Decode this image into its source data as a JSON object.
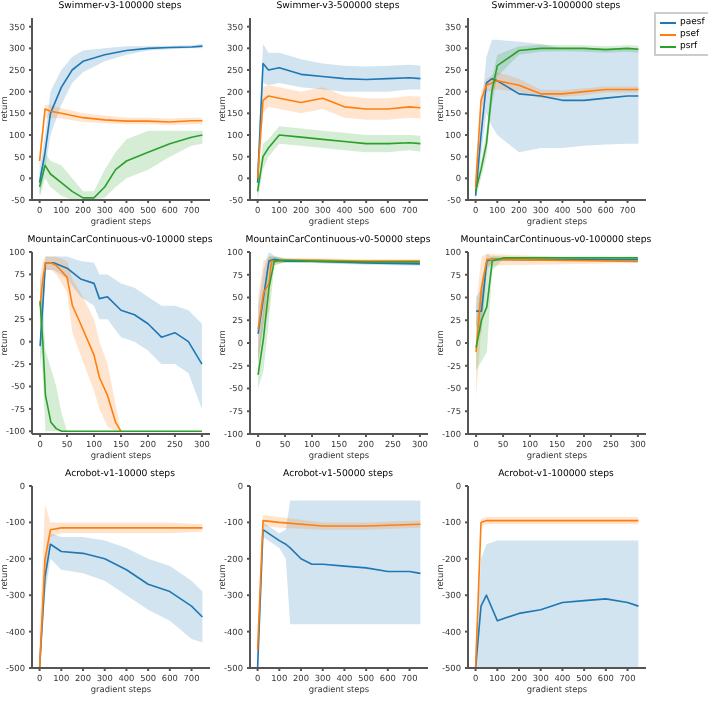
{
  "chart_data": [
    {
      "type": "line",
      "title": "Swimmer-v3-100000 steps",
      "xlabel": "gradient steps",
      "ylabel": "return",
      "xlim": [
        -35,
        785
      ],
      "xticks": [
        0,
        100,
        200,
        300,
        400,
        500,
        600,
        700
      ],
      "ylim": [
        -50,
        370
      ],
      "yticks": [
        -50,
        0,
        50,
        100,
        150,
        200,
        250,
        300,
        350
      ],
      "series": [
        {
          "color": "#1f77b4",
          "x": [
            0,
            25,
            50,
            100,
            150,
            200,
            300,
            400,
            500,
            600,
            700,
            750
          ],
          "values": [
            -10,
            60,
            150,
            210,
            250,
            270,
            285,
            295,
            300,
            302,
            303,
            305
          ],
          "lower": [
            -40,
            20,
            100,
            170,
            220,
            245,
            270,
            285,
            295,
            298,
            300,
            300
          ],
          "upper": [
            20,
            100,
            200,
            250,
            280,
            295,
            300,
            305,
            305,
            306,
            307,
            310
          ]
        },
        {
          "color": "#ff7f0e",
          "x": [
            0,
            25,
            50,
            100,
            200,
            300,
            400,
            500,
            600,
            700,
            750
          ],
          "values": [
            40,
            160,
            155,
            150,
            140,
            135,
            132,
            132,
            130,
            133,
            133
          ],
          "lower": [
            20,
            140,
            140,
            138,
            130,
            127,
            125,
            125,
            123,
            125,
            125
          ],
          "upper": [
            60,
            170,
            170,
            162,
            150,
            145,
            140,
            140,
            138,
            140,
            140
          ]
        },
        {
          "color": "#2ca02c",
          "x": [
            0,
            25,
            50,
            100,
            150,
            200,
            250,
            300,
            350,
            400,
            500,
            600,
            700,
            750
          ],
          "values": [
            -20,
            30,
            10,
            -10,
            -30,
            -45,
            -45,
            -20,
            20,
            40,
            60,
            80,
            95,
            100
          ],
          "lower": [
            -45,
            0,
            -20,
            -40,
            -50,
            -50,
            -50,
            -45,
            -20,
            0,
            20,
            50,
            75,
            80
          ],
          "upper": [
            10,
            60,
            40,
            30,
            0,
            -30,
            -30,
            20,
            60,
            90,
            110,
            110,
            110,
            110
          ]
        }
      ]
    },
    {
      "type": "line",
      "title": "Swimmer-v3-500000 steps",
      "xlabel": "gradient steps",
      "ylabel": "return",
      "xlim": [
        -35,
        785
      ],
      "xticks": [
        0,
        100,
        200,
        300,
        400,
        500,
        600,
        700
      ],
      "ylim": [
        -50,
        370
      ],
      "yticks": [
        -50,
        0,
        50,
        100,
        150,
        200,
        250,
        300,
        350
      ],
      "series": [
        {
          "color": "#1f77b4",
          "x": [
            0,
            25,
            50,
            100,
            200,
            300,
            400,
            500,
            600,
            700,
            750
          ],
          "values": [
            -10,
            265,
            250,
            255,
            240,
            235,
            230,
            228,
            230,
            232,
            230
          ],
          "lower": [
            -50,
            220,
            215,
            220,
            210,
            205,
            200,
            200,
            200,
            205,
            205
          ],
          "upper": [
            30,
            310,
            290,
            290,
            275,
            265,
            260,
            258,
            260,
            262,
            260
          ]
        },
        {
          "color": "#ff7f0e",
          "x": [
            0,
            25,
            50,
            100,
            200,
            300,
            400,
            500,
            600,
            700,
            750
          ],
          "values": [
            0,
            180,
            190,
            185,
            175,
            185,
            165,
            160,
            160,
            165,
            163
          ],
          "lower": [
            -30,
            150,
            165,
            160,
            150,
            160,
            140,
            135,
            135,
            140,
            138
          ],
          "upper": [
            30,
            210,
            215,
            210,
            200,
            210,
            190,
            185,
            185,
            190,
            188
          ]
        },
        {
          "color": "#2ca02c",
          "x": [
            0,
            25,
            50,
            100,
            200,
            300,
            400,
            500,
            600,
            700,
            750
          ],
          "values": [
            -30,
            50,
            70,
            100,
            95,
            90,
            85,
            80,
            80,
            82,
            80
          ],
          "lower": [
            -50,
            20,
            50,
            80,
            75,
            70,
            65,
            60,
            60,
            65,
            62
          ],
          "upper": [
            0,
            80,
            90,
            120,
            115,
            110,
            105,
            100,
            100,
            100,
            98
          ]
        }
      ]
    },
    {
      "type": "line",
      "title": "Swimmer-v3-1000000 steps",
      "xlabel": "gradient steps",
      "ylabel": "return",
      "xlim": [
        -35,
        785
      ],
      "xticks": [
        0,
        100,
        200,
        300,
        400,
        500,
        600,
        700
      ],
      "ylim": [
        -50,
        370
      ],
      "yticks": [
        -50,
        0,
        50,
        100,
        150,
        200,
        250,
        300,
        350
      ],
      "legend": "right",
      "series": [
        {
          "name": "paesf",
          "color": "#1f77b4",
          "x": [
            0,
            25,
            50,
            75,
            100,
            200,
            300,
            400,
            500,
            600,
            700,
            750
          ],
          "values": [
            -40,
            100,
            220,
            230,
            225,
            195,
            190,
            180,
            180,
            185,
            190,
            190
          ],
          "lower": [
            -50,
            50,
            150,
            120,
            100,
            60,
            70,
            70,
            75,
            78,
            80,
            80
          ],
          "upper": [
            -20,
            150,
            280,
            320,
            320,
            315,
            310,
            300,
            300,
            300,
            300,
            300
          ]
        },
        {
          "name": "psef",
          "color": "#ff7f0e",
          "x": [
            0,
            25,
            50,
            100,
            200,
            300,
            400,
            500,
            600,
            700,
            750
          ],
          "values": [
            -20,
            180,
            215,
            225,
            215,
            195,
            195,
            200,
            205,
            205,
            205
          ],
          "lower": [
            -40,
            160,
            200,
            205,
            200,
            185,
            188,
            192,
            198,
            198,
            198
          ],
          "upper": [
            0,
            200,
            230,
            245,
            230,
            205,
            203,
            208,
            212,
            212,
            212
          ]
        },
        {
          "name": "psrf",
          "color": "#2ca02c",
          "x": [
            0,
            25,
            50,
            75,
            100,
            200,
            300,
            400,
            500,
            600,
            700,
            750
          ],
          "values": [
            -30,
            20,
            80,
            200,
            260,
            295,
            300,
            300,
            300,
            297,
            300,
            298
          ],
          "lower": [
            -50,
            0,
            50,
            170,
            235,
            285,
            292,
            293,
            292,
            290,
            292,
            290
          ],
          "upper": [
            -10,
            40,
            110,
            230,
            285,
            305,
            308,
            307,
            307,
            305,
            307,
            306
          ]
        }
      ]
    },
    {
      "type": "line",
      "title": "MountainCarContinuous-v0-10000 steps",
      "xlabel": "gradient steps",
      "ylabel": "return",
      "xlim": [
        -15,
        315
      ],
      "xticks": [
        0,
        50,
        100,
        150,
        200,
        250,
        300
      ],
      "ylim": [
        -103,
        100
      ],
      "yticks": [
        -100,
        -75,
        -50,
        -25,
        0,
        25,
        50,
        75,
        100
      ],
      "series": [
        {
          "color": "#1f77b4",
          "x": [
            0,
            5,
            10,
            25,
            50,
            75,
            100,
            110,
            125,
            150,
            175,
            200,
            225,
            250,
            275,
            300
          ],
          "values": [
            -5,
            40,
            88,
            88,
            82,
            70,
            65,
            48,
            50,
            35,
            30,
            20,
            5,
            10,
            0,
            -25
          ],
          "lower": [
            -30,
            10,
            80,
            80,
            70,
            50,
            40,
            25,
            25,
            5,
            0,
            -10,
            -25,
            -25,
            -35,
            -75
          ],
          "upper": [
            20,
            70,
            95,
            95,
            95,
            90,
            88,
            75,
            75,
            65,
            60,
            50,
            40,
            40,
            35,
            20
          ]
        },
        {
          "color": "#ff7f0e",
          "x": [
            0,
            5,
            10,
            20,
            30,
            50,
            60,
            75,
            100,
            110,
            125,
            140,
            150
          ],
          "values": [
            40,
            70,
            88,
            88,
            85,
            72,
            40,
            20,
            -15,
            -40,
            -60,
            -90,
            -100
          ],
          "lower": [
            10,
            50,
            80,
            80,
            75,
            55,
            10,
            -15,
            -55,
            -75,
            -95,
            -100,
            -100
          ],
          "upper": [
            70,
            90,
            95,
            95,
            95,
            90,
            70,
            55,
            25,
            0,
            -25,
            -70,
            -100
          ]
        },
        {
          "color": "#2ca02c",
          "x": [
            0,
            5,
            10,
            20,
            30,
            40,
            50,
            100,
            150,
            200,
            250,
            300
          ],
          "values": [
            45,
            0,
            -60,
            -90,
            -97,
            -100,
            -100,
            -100,
            -100,
            -100,
            -100,
            -100
          ],
          "lower": [
            10,
            -40,
            -100,
            -100,
            -100,
            -100,
            -100,
            -100,
            -100,
            -100,
            -100,
            -100
          ],
          "upper": [
            80,
            40,
            -10,
            -30,
            -50,
            -80,
            -100,
            -100,
            -100,
            -100,
            -100,
            -100
          ]
        }
      ]
    },
    {
      "type": "line",
      "title": "MountainCarContinuous-v0-50000 steps",
      "xlabel": "gradient steps",
      "ylabel": "return",
      "xlim": [
        -15,
        315
      ],
      "xticks": [
        0,
        50,
        100,
        150,
        200,
        250,
        300
      ],
      "ylim": [
        -100,
        100
      ],
      "yticks": [
        -100,
        -75,
        -50,
        -25,
        0,
        25,
        50,
        75,
        100
      ],
      "series": [
        {
          "color": "#1f77b4",
          "x": [
            0,
            10,
            20,
            30,
            50,
            100,
            200,
            300
          ],
          "values": [
            10,
            50,
            90,
            92,
            90,
            90,
            88,
            87
          ],
          "lower": [
            -20,
            20,
            80,
            88,
            88,
            88,
            86,
            85
          ],
          "upper": [
            40,
            80,
            100,
            96,
            92,
            92,
            90,
            89
          ]
        },
        {
          "color": "#ff7f0e",
          "x": [
            0,
            10,
            20,
            25,
            50,
            100,
            200,
            300
          ],
          "values": [
            15,
            55,
            65,
            90,
            91,
            91,
            90,
            90
          ],
          "lower": [
            -20,
            20,
            35,
            85,
            89,
            89,
            88,
            88
          ],
          "upper": [
            50,
            90,
            95,
            95,
            93,
            93,
            92,
            92
          ]
        },
        {
          "color": "#2ca02c",
          "x": [
            0,
            10,
            20,
            30,
            50,
            100,
            200,
            300
          ],
          "values": [
            -35,
            5,
            60,
            90,
            91,
            90,
            89,
            89
          ],
          "lower": [
            -50,
            -30,
            25,
            85,
            89,
            88,
            87,
            87
          ],
          "upper": [
            -10,
            40,
            95,
            95,
            93,
            92,
            91,
            91
          ]
        }
      ]
    },
    {
      "type": "line",
      "title": "MountainCarContinuous-v0-100000 steps",
      "xlabel": "gradient steps",
      "ylabel": "return",
      "xlim": [
        -15,
        315
      ],
      "xticks": [
        0,
        50,
        100,
        150,
        200,
        250,
        300
      ],
      "ylim": [
        -100,
        100
      ],
      "yticks": [
        -100,
        -75,
        -50,
        -25,
        0,
        25,
        50,
        75,
        100
      ],
      "series": [
        {
          "color": "#1f77b4",
          "x": [
            0,
            10,
            20,
            30,
            100,
            300
          ],
          "values": [
            35,
            35,
            90,
            92,
            91.5,
            91.5
          ],
          "lower": [
            20,
            10,
            80,
            90,
            90,
            90
          ],
          "upper": [
            50,
            60,
            98,
            94,
            93,
            93
          ]
        },
        {
          "color": "#ff7f0e",
          "x": [
            0,
            10,
            20,
            300
          ],
          "values": [
            -10,
            60,
            92,
            89.5
          ],
          "lower": [
            -60,
            20,
            85,
            88
          ],
          "upper": [
            40,
            95,
            98,
            91
          ]
        },
        {
          "color": "#2ca02c",
          "x": [
            0,
            10,
            20,
            30,
            50,
            300
          ],
          "values": [
            -5,
            25,
            40,
            90,
            93.5,
            93.5
          ],
          "lower": [
            -30,
            -20,
            -10,
            80,
            92,
            92
          ],
          "upper": [
            20,
            70,
            90,
            96,
            95,
            95
          ]
        }
      ]
    },
    {
      "type": "line",
      "title": "Acrobot-v1-10000 steps",
      "xlabel": "gradient steps",
      "ylabel": "return",
      "xlim": [
        -35,
        785
      ],
      "xticks": [
        0,
        100,
        200,
        300,
        400,
        500,
        600,
        700
      ],
      "ylim": [
        -500,
        0
      ],
      "yticks": [
        -500,
        -400,
        -300,
        -200,
        -100,
        0
      ],
      "series": [
        {
          "color": "#1f77b4",
          "x": [
            0,
            25,
            50,
            100,
            200,
            300,
            400,
            500,
            600,
            700,
            750
          ],
          "values": [
            -500,
            -250,
            -160,
            -180,
            -185,
            -200,
            -230,
            -270,
            -290,
            -330,
            -360
          ],
          "lower": [
            -500,
            -300,
            -200,
            -230,
            -240,
            -260,
            -300,
            -340,
            -370,
            -420,
            -430
          ],
          "upper": [
            -450,
            -200,
            -130,
            -140,
            -140,
            -150,
            -170,
            -200,
            -220,
            -260,
            -290
          ]
        },
        {
          "color": "#ff7f0e",
          "x": [
            0,
            25,
            50,
            100,
            200,
            400,
            600,
            750
          ],
          "values": [
            -500,
            -200,
            -120,
            -115,
            -115,
            -115,
            -115,
            -115
          ],
          "lower": [
            -500,
            -260,
            -140,
            -130,
            -130,
            -130,
            -130,
            -125
          ],
          "upper": [
            -400,
            -50,
            -100,
            -100,
            -100,
            -100,
            -100,
            -105
          ]
        }
      ]
    },
    {
      "type": "line",
      "title": "Acrobot-v1-50000 steps",
      "xlabel": "gradient steps",
      "ylabel": "return",
      "xlim": [
        -35,
        785
      ],
      "xticks": [
        0,
        100,
        200,
        300,
        400,
        500,
        600,
        700
      ],
      "ylim": [
        -500,
        0
      ],
      "yticks": [
        -500,
        -400,
        -300,
        -200,
        -100,
        0
      ],
      "series": [
        {
          "color": "#1f77b4",
          "x": [
            0,
            25,
            100,
            130,
            150,
            200,
            250,
            300,
            400,
            500,
            600,
            700,
            750
          ],
          "values": [
            -500,
            -120,
            -150,
            -160,
            -170,
            -200,
            -215,
            -215,
            -220,
            -225,
            -235,
            -235,
            -240
          ],
          "lower": [
            -500,
            -140,
            -170,
            -200,
            -380,
            -380,
            -380,
            -380,
            -380,
            -380,
            -380,
            -380,
            -380
          ],
          "upper": [
            -450,
            -100,
            -130,
            -120,
            -40,
            -40,
            -40,
            -40,
            -40,
            -40,
            -40,
            -40,
            -40
          ]
        },
        {
          "color": "#ff7f0e",
          "x": [
            0,
            25,
            100,
            300,
            500,
            750
          ],
          "values": [
            -450,
            -95,
            -100,
            -110,
            -110,
            -105
          ],
          "lower": [
            -500,
            -110,
            -115,
            -120,
            -120,
            -115
          ],
          "upper": [
            -400,
            -80,
            -85,
            -100,
            -100,
            -95
          ]
        }
      ]
    },
    {
      "type": "line",
      "title": "Acrobot-v1-100000 steps",
      "xlabel": "gradient steps",
      "ylabel": "return",
      "xlim": [
        -35,
        785
      ],
      "xticks": [
        0,
        100,
        200,
        300,
        400,
        500,
        600,
        700
      ],
      "ylim": [
        -500,
        0
      ],
      "yticks": [
        -500,
        -400,
        -300,
        -200,
        -100,
        0
      ],
      "series": [
        {
          "color": "#1f77b4",
          "x": [
            0,
            25,
            50,
            100,
            200,
            300,
            400,
            500,
            600,
            700,
            750
          ],
          "values": [
            -500,
            -330,
            -300,
            -370,
            -350,
            -340,
            -320,
            -315,
            -310,
            -320,
            -330
          ],
          "lower": [
            -500,
            -500,
            -500,
            -500,
            -500,
            -500,
            -500,
            -500,
            -500,
            -500,
            -500
          ],
          "upper": [
            -450,
            -200,
            -160,
            -150,
            -150,
            -150,
            -150,
            -150,
            -150,
            -150,
            -150
          ]
        },
        {
          "color": "#ff7f0e",
          "x": [
            0,
            25,
            50,
            750
          ],
          "values": [
            -500,
            -100,
            -95,
            -95
          ],
          "lower": [
            -500,
            -110,
            -105,
            -105
          ],
          "upper": [
            -450,
            -90,
            -85,
            -85
          ]
        }
      ]
    }
  ]
}
